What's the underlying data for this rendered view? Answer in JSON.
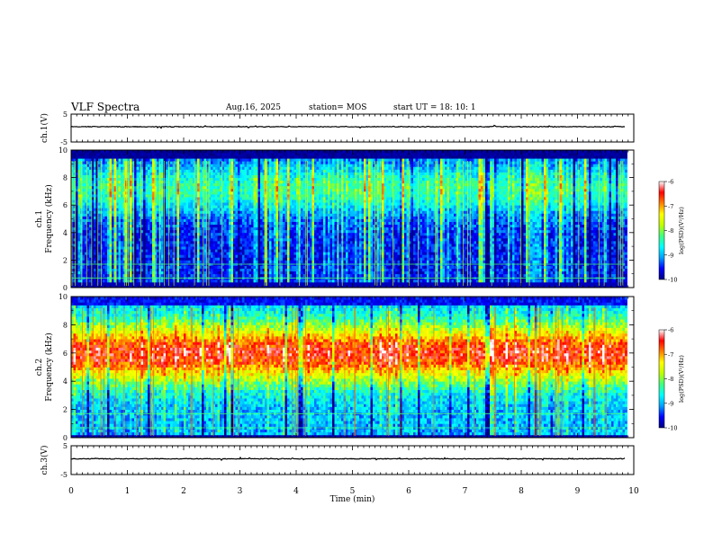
{
  "header": {
    "title": "VLF Spectra",
    "date": "Aug.16, 2025",
    "station": "station= MOS",
    "start": "start  UT  =   18: 10: 1"
  },
  "chart_data": {
    "type": "heatmap",
    "x_axis": {
      "label": "Time  (min)",
      "range": [
        0,
        10
      ],
      "ticks": [
        "0",
        "1",
        "2",
        "3",
        "4",
        "5",
        "6",
        "7",
        "8",
        "9",
        "10"
      ]
    },
    "panels": [
      {
        "id": "ch1_waveform",
        "type": "line",
        "ylabel": "ch.1(V)",
        "ylim": [
          -5,
          5
        ],
        "ytick_labels": [
          "5",
          "-5"
        ],
        "baseline_value": 0
      },
      {
        "id": "ch1_spectrogram",
        "type": "heatmap",
        "ylabel_top": "ch.1",
        "ylabel": "Frequency (kHz)",
        "ylim": [
          0,
          10
        ],
        "ytick_labels": [
          "0",
          "2",
          "4",
          "6",
          "8",
          "10"
        ],
        "intensity_level": "low",
        "colorbar": {
          "label": "log(PSD)(V²/Hz)",
          "range": [
            -10,
            -6
          ],
          "tick_labels": [
            "-6",
            "-7",
            "-8",
            "-9",
            "-10"
          ]
        }
      },
      {
        "id": "ch2_spectrogram",
        "type": "heatmap",
        "ylabel_top": "ch.2",
        "ylabel": "Frequency (kHz)",
        "ylim": [
          0,
          10
        ],
        "ytick_labels": [
          "0",
          "2",
          "4",
          "6",
          "8",
          "10"
        ],
        "intensity_level": "high",
        "colorbar": {
          "label": "log(PSD)(V²/Hz)",
          "range": [
            -10,
            -6
          ],
          "tick_labels": [
            "-6",
            "-7",
            "-8",
            "-9",
            "-10"
          ]
        }
      },
      {
        "id": "ch3_waveform",
        "type": "line",
        "ylabel": "ch.3(V)",
        "ylim": [
          -5,
          5
        ],
        "ytick_labels": [
          "5",
          "-5"
        ],
        "baseline_value": 0
      }
    ],
    "colormap": [
      "#000080",
      "#0000ff",
      "#00a0ff",
      "#00ffff",
      "#40ff80",
      "#c0ff00",
      "#ffff00",
      "#ff8000",
      "#ff0000",
      "#ffffff"
    ]
  }
}
